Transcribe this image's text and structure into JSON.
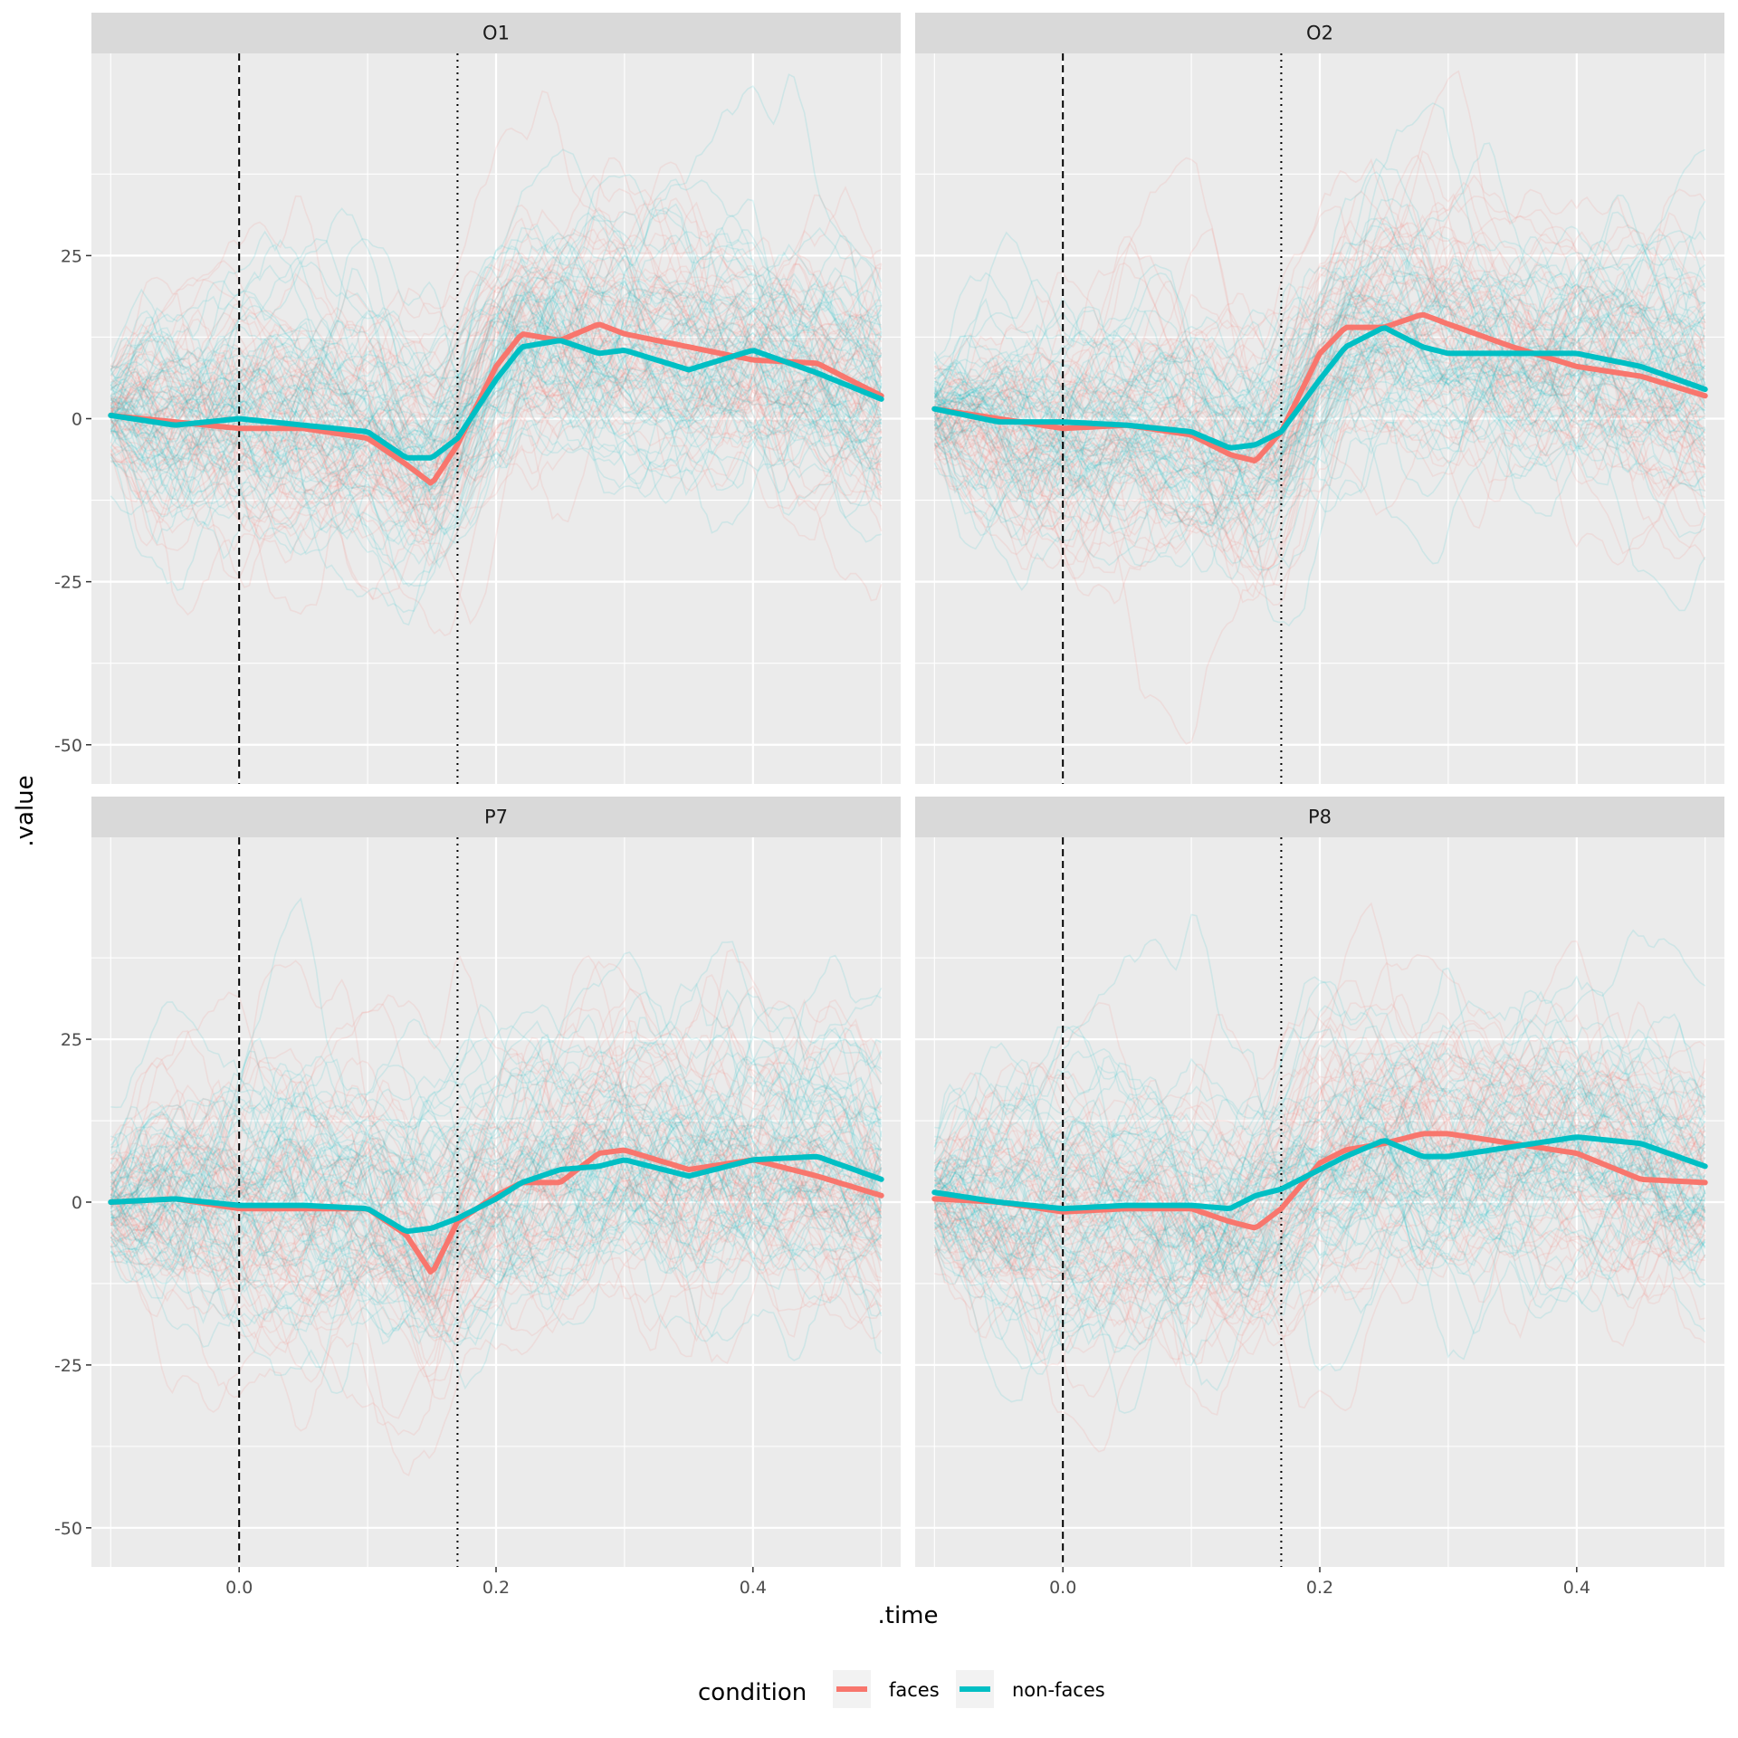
{
  "chart_data": {
    "type": "line",
    "xlabel": ".time",
    "ylabel": ".value",
    "xlim": [
      -0.115,
      0.515
    ],
    "ylim": [
      -56,
      56
    ],
    "x_ticks": [
      0.0,
      0.2,
      0.4
    ],
    "x_tick_labels": [
      "0.0",
      "0.2",
      "0.4"
    ],
    "y_ticks": [
      -50,
      -25,
      0,
      25
    ],
    "y_tick_labels": [
      "-50",
      "-25",
      "0",
      "25"
    ],
    "grid": true,
    "reference_lines": [
      {
        "x": 0.0,
        "style": "dashed",
        "color": "#000000"
      },
      {
        "x": 0.17,
        "style": "dotted",
        "color": "#000000"
      }
    ],
    "legend": {
      "title": "condition",
      "position": "bottom",
      "entries": [
        {
          "label": "faces",
          "color": "#F8766D"
        },
        {
          "label": "non-faces",
          "color": "#00BFC4"
        }
      ]
    },
    "single_trials_note_color_alpha": 0.12,
    "panels": [
      {
        "label": "O1",
        "series": [
          {
            "name": "faces",
            "color": "#F8766D",
            "x": [
              -0.1,
              -0.05,
              0.0,
              0.05,
              0.1,
              0.13,
              0.15,
              0.17,
              0.2,
              0.22,
              0.25,
              0.28,
              0.3,
              0.35,
              0.4,
              0.45,
              0.5
            ],
            "y": [
              0.5,
              -0.5,
              -1.5,
              -1.5,
              -3,
              -7,
              -10,
              -4,
              8,
              13,
              12,
              14.5,
              13,
              11,
              9,
              8.5,
              3.5
            ]
          },
          {
            "name": "non-faces",
            "color": "#00BFC4",
            "x": [
              -0.1,
              -0.05,
              0.0,
              0.05,
              0.1,
              0.13,
              0.15,
              0.17,
              0.2,
              0.22,
              0.25,
              0.28,
              0.3,
              0.35,
              0.4,
              0.45,
              0.5
            ],
            "y": [
              0.5,
              -1,
              0,
              -1,
              -2,
              -6,
              -6,
              -3,
              6,
              11,
              12,
              10,
              10.5,
              7.5,
              10.5,
              7,
              3
            ]
          }
        ]
      },
      {
        "label": "O2",
        "series": [
          {
            "name": "faces",
            "color": "#F8766D",
            "x": [
              -0.1,
              -0.05,
              0.0,
              0.05,
              0.1,
              0.13,
              0.15,
              0.17,
              0.2,
              0.22,
              0.25,
              0.28,
              0.3,
              0.35,
              0.4,
              0.45,
              0.5
            ],
            "y": [
              1.5,
              0,
              -1.5,
              -1,
              -2.5,
              -5.5,
              -6.5,
              -2,
              10,
              14,
              14,
              16,
              14.5,
              11,
              8,
              6.5,
              3.5
            ]
          },
          {
            "name": "non-faces",
            "color": "#00BFC4",
            "x": [
              -0.1,
              -0.05,
              0.0,
              0.05,
              0.1,
              0.13,
              0.15,
              0.17,
              0.2,
              0.22,
              0.25,
              0.28,
              0.3,
              0.35,
              0.4,
              0.45,
              0.5
            ],
            "y": [
              1.5,
              -0.5,
              -0.5,
              -1,
              -2,
              -4.5,
              -4,
              -2,
              6,
              11,
              14,
              11,
              10,
              10,
              10,
              8,
              4.5
            ]
          }
        ]
      },
      {
        "label": "P7",
        "series": [
          {
            "name": "faces",
            "color": "#F8766D",
            "x": [
              -0.1,
              -0.05,
              0.0,
              0.05,
              0.1,
              0.13,
              0.15,
              0.17,
              0.2,
              0.22,
              0.25,
              0.28,
              0.3,
              0.35,
              0.4,
              0.45,
              0.5
            ],
            "y": [
              0,
              0.5,
              -1,
              -1,
              -1,
              -5,
              -11,
              -3,
              1,
              3,
              3,
              7.5,
              8,
              5,
              6.5,
              4,
              1
            ]
          },
          {
            "name": "non-faces",
            "color": "#00BFC4",
            "x": [
              -0.1,
              -0.05,
              0.0,
              0.05,
              0.1,
              0.13,
              0.15,
              0.17,
              0.2,
              0.22,
              0.25,
              0.28,
              0.3,
              0.35,
              0.4,
              0.45,
              0.5
            ],
            "y": [
              0,
              0.5,
              -0.5,
              -0.5,
              -1,
              -4.5,
              -4,
              -2.5,
              0.5,
              3,
              5,
              5.5,
              6.5,
              4,
              6.5,
              7,
              3.5
            ]
          }
        ]
      },
      {
        "label": "P8",
        "series": [
          {
            "name": "faces",
            "color": "#F8766D",
            "x": [
              -0.1,
              -0.05,
              0.0,
              0.05,
              0.1,
              0.13,
              0.15,
              0.17,
              0.2,
              0.22,
              0.25,
              0.28,
              0.3,
              0.35,
              0.4,
              0.45,
              0.5
            ],
            "y": [
              0.5,
              0,
              -1.5,
              -1,
              -1,
              -3,
              -4,
              -1,
              6,
              8,
              9,
              10.5,
              10.5,
              9,
              7.5,
              3.5,
              3
            ]
          },
          {
            "name": "non-faces",
            "color": "#00BFC4",
            "x": [
              -0.1,
              -0.05,
              0.0,
              0.05,
              0.1,
              0.13,
              0.15,
              0.17,
              0.2,
              0.22,
              0.25,
              0.28,
              0.3,
              0.35,
              0.4,
              0.45,
              0.5
            ],
            "y": [
              1.5,
              0,
              -1,
              -0.5,
              -0.5,
              -1,
              1,
              2,
              5,
              7,
              9.5,
              7,
              7,
              8.5,
              10,
              9,
              5.5
            ]
          }
        ]
      }
    ]
  }
}
